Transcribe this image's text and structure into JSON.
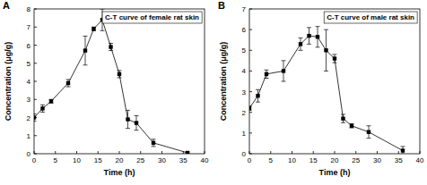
{
  "chart_data": [
    {
      "type": "line",
      "panel_label": "A",
      "title": "C-T curve of female rat skin",
      "x_label": "Time (h)",
      "y_label": "Concentration (μg/g)",
      "x": [
        0,
        2,
        4,
        8,
        12,
        14,
        16,
        18,
        20,
        22,
        24,
        28,
        36
      ],
      "series": [
        {
          "color": "#000000",
          "marker": "square",
          "line_style": "solid",
          "values": [
            2.0,
            2.5,
            2.9,
            3.9,
            5.7,
            6.9,
            7.4,
            5.9,
            4.4,
            1.9,
            1.7,
            0.6,
            0.05
          ],
          "errors": [
            0.2,
            0.2,
            0.1,
            0.2,
            0.8,
            0.1,
            0.6,
            0.2,
            0.2,
            0.5,
            0.4,
            0.2,
            0.05
          ]
        }
      ],
      "xlim": [
        0,
        40
      ],
      "xticks": [
        0,
        5,
        10,
        15,
        20,
        25,
        30,
        35,
        40
      ],
      "ylim": [
        0,
        8
      ],
      "yticks": [
        0,
        1,
        2,
        3,
        4,
        5,
        6,
        7,
        8
      ],
      "grid": false
    },
    {
      "type": "line",
      "panel_label": "B",
      "title": "C-T curve of male rat skin",
      "x_label": "Time (h)",
      "y_label": "Concentration (μg/g)",
      "x": [
        0,
        2,
        4,
        8,
        12,
        14,
        16,
        18,
        20,
        22,
        24,
        28,
        36
      ],
      "series": [
        {
          "color": "#000000",
          "marker": "square",
          "line_style": "solid",
          "values": [
            2.2,
            2.8,
            3.85,
            4.0,
            5.3,
            5.7,
            5.65,
            5.0,
            4.6,
            1.7,
            1.35,
            1.05,
            0.15
          ],
          "errors": [
            0.1,
            0.3,
            0.2,
            0.5,
            0.3,
            0.4,
            0.5,
            1.0,
            0.2,
            0.2,
            0.1,
            0.3,
            0.2
          ]
        }
      ],
      "xlim": [
        0,
        40
      ],
      "xticks": [
        0,
        5,
        10,
        15,
        20,
        25,
        30,
        35,
        40
      ],
      "ylim": [
        0,
        7
      ],
      "yticks": [
        0,
        1,
        2,
        3,
        4,
        5,
        6,
        7
      ],
      "grid": false
    }
  ]
}
